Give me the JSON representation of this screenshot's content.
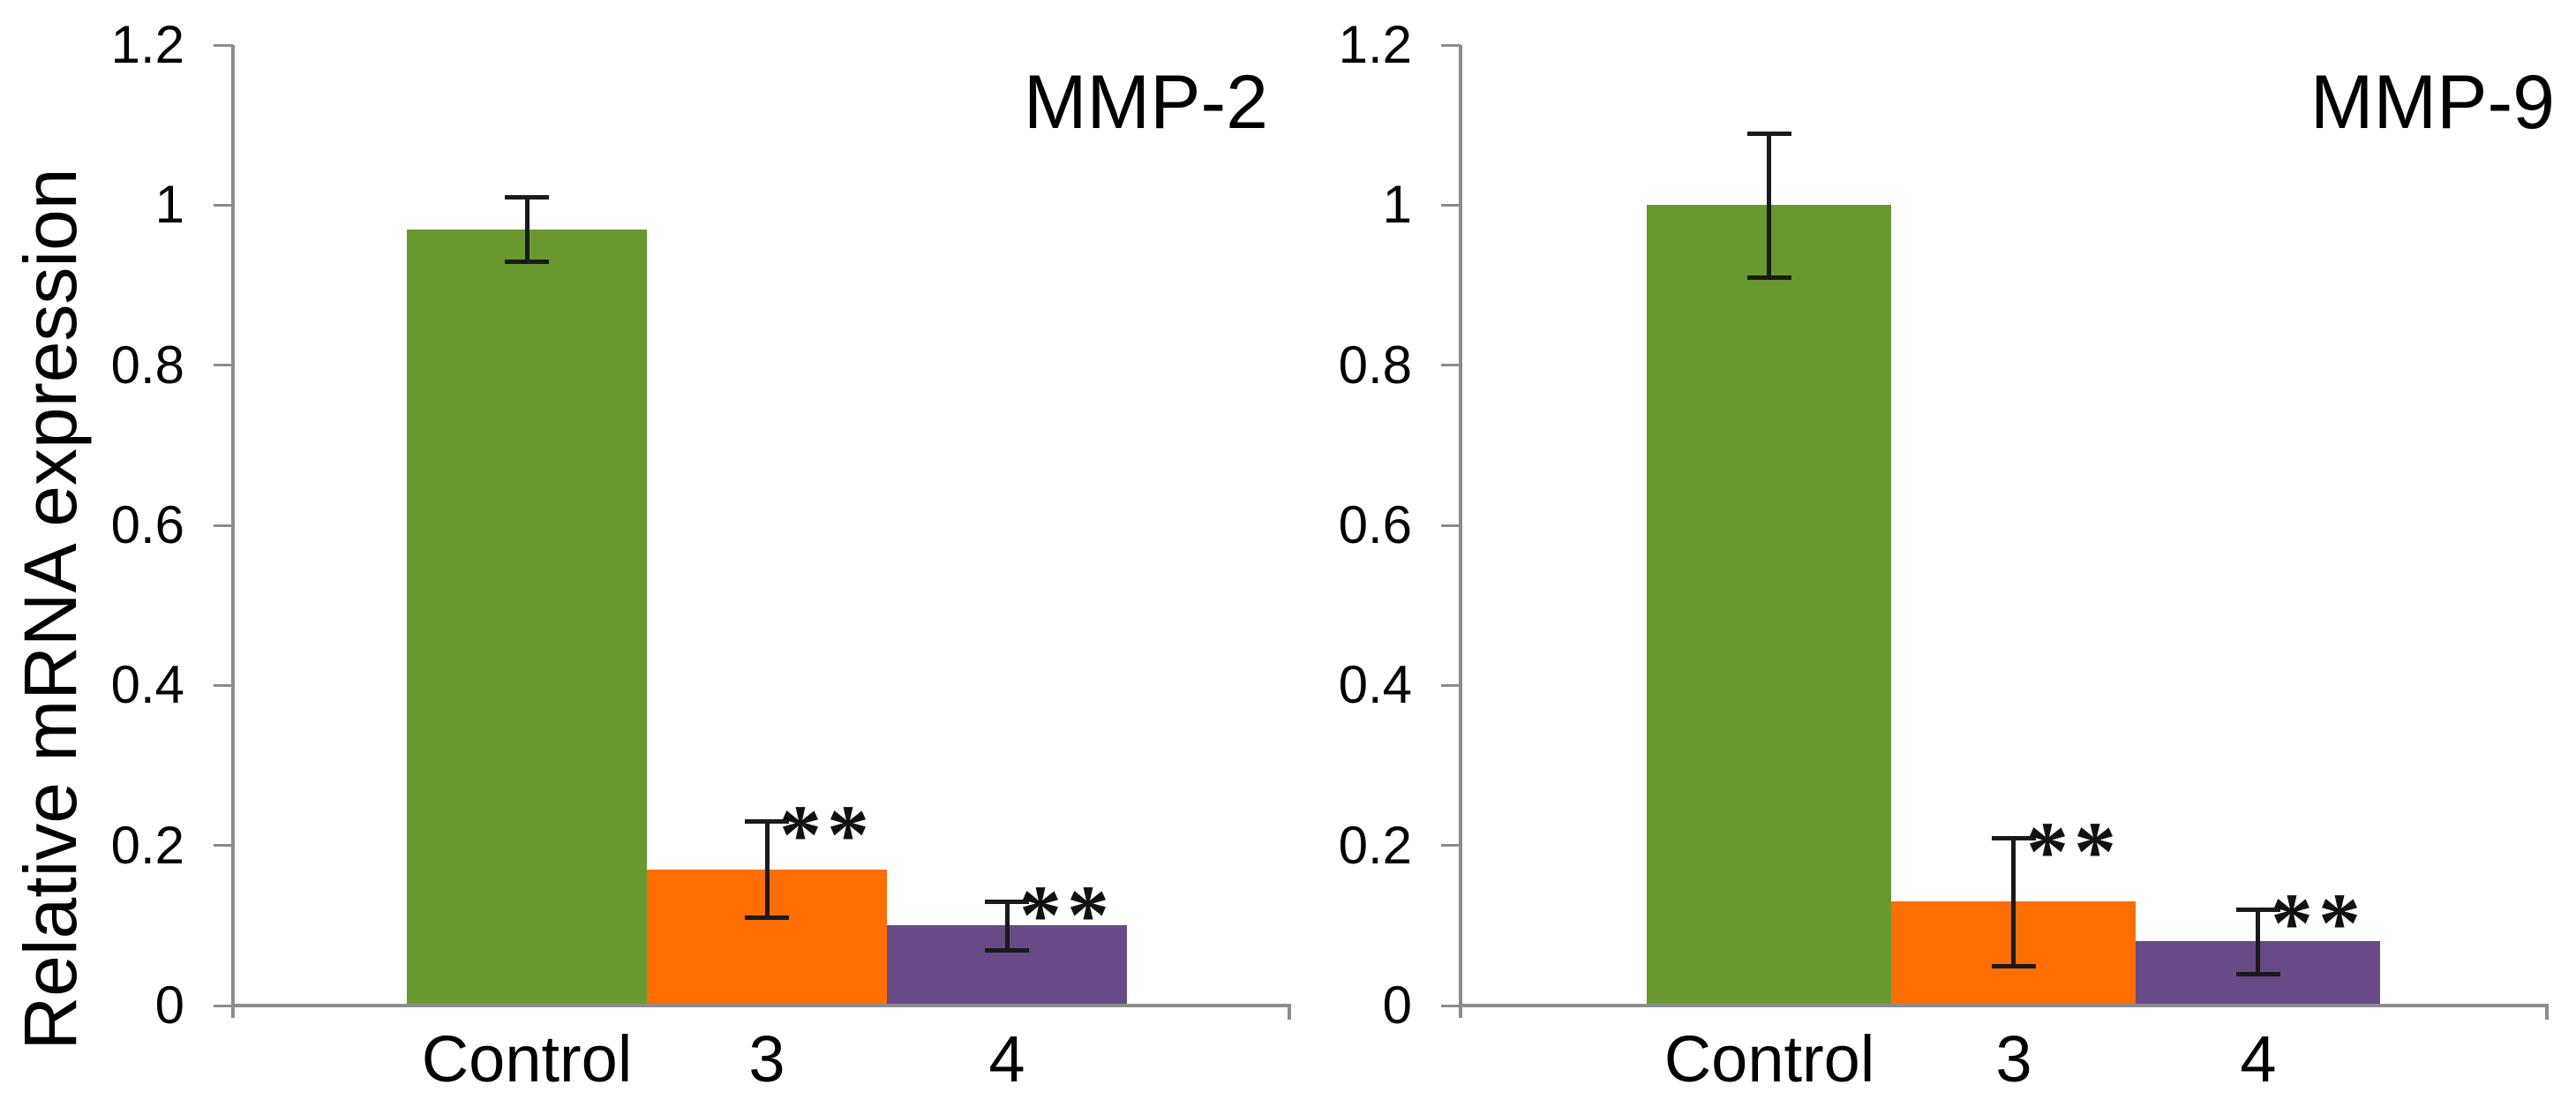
{
  "figure": {
    "background": "#ffffff",
    "axis_color": "#8C8C8C",
    "text_color": "#000000",
    "error_bar_color": "#1A1A1A"
  },
  "chart_data": [
    {
      "type": "bar",
      "title": "MMP-2",
      "ylabel": "Relative mRNA expression",
      "xlabel": "",
      "categories": [
        "Control",
        "3",
        "4"
      ],
      "values": [
        0.97,
        0.17,
        0.1
      ],
      "error_bars": [
        0.04,
        0.06,
        0.03
      ],
      "significance": [
        "",
        "**",
        "**"
      ],
      "bar_colors": [
        "#69982F",
        "#FF6E00",
        "#684A87"
      ],
      "ylim": [
        0,
        1.2
      ],
      "ytick_values": [
        1.2,
        1.0,
        0.8,
        0.6,
        0.4,
        0.2,
        0
      ],
      "ytick_labels": [
        "1.2",
        "1",
        "0.8",
        "0.6",
        "0.4",
        "0.2",
        "0"
      ],
      "grid": false,
      "legend": null
    },
    {
      "type": "bar",
      "title": "MMP-9",
      "ylabel": "",
      "xlabel": "",
      "categories": [
        "Control",
        "3",
        "4"
      ],
      "values": [
        1.0,
        0.13,
        0.08
      ],
      "error_bars": [
        0.09,
        0.08,
        0.04
      ],
      "significance": [
        "",
        "**",
        "**"
      ],
      "bar_colors": [
        "#69982F",
        "#FF6E00",
        "#684A87"
      ],
      "ylim": [
        0,
        1.2
      ],
      "ytick_values": [
        1.2,
        1.0,
        0.8,
        0.6,
        0.4,
        0.2,
        0
      ],
      "ytick_labels": [
        "1.2",
        "1",
        "0.8",
        "0.6",
        "0.4",
        "0.2",
        "0"
      ],
      "grid": false,
      "legend": null
    }
  ]
}
